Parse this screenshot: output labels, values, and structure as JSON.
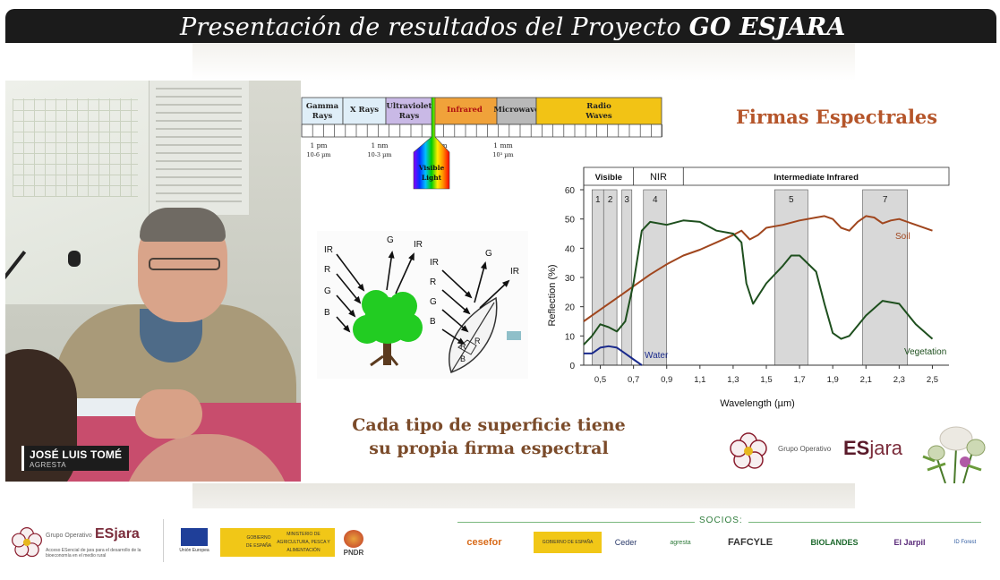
{
  "header": {
    "title_prefix": "Presentación de resultados  del Proyecto ",
    "title_bold": "GO ESJARA"
  },
  "video": {
    "speaker_name": "JOSÉ LUIS TOMÉ",
    "speaker_org": "AGRESTA"
  },
  "slide": {
    "title": "Firmas Espectrales",
    "caption_line1": "Cada tipo de superficie tiene",
    "caption_line2": "su propia firma espectral",
    "spectrum": {
      "bands": [
        {
          "label": "Gamma",
          "label2": "Rays",
          "color": "#dfeef8"
        },
        {
          "label": "X Rays",
          "label2": "",
          "color": "#dfeef8"
        },
        {
          "label": "Ultraviolet",
          "label2": "Rays",
          "color": "#c9b9e6"
        },
        {
          "label": "Infrared",
          "label2": "",
          "color": "#f0a23a"
        },
        {
          "label": "Microwave",
          "label2": "",
          "color": "#b9b9b9"
        },
        {
          "label": "Radio",
          "label2": "Waves",
          "color": "#f2c315"
        }
      ],
      "ticks": [
        {
          "label": "1 pm",
          "label2": "10-6 µm"
        },
        {
          "label": "1 nm",
          "label2": "10-3 µm"
        },
        {
          "label": "1 µm",
          "label2": ""
        },
        {
          "label": "1 mm",
          "label2": "10³ µm"
        }
      ],
      "visible_label": "Visible",
      "visible_label2": "Light"
    },
    "diagram": {
      "tree_labels": [
        "IR",
        "R",
        "G",
        "B",
        "G",
        "IR"
      ],
      "leaf_labels": [
        "IR",
        "R",
        "G",
        "B",
        "G",
        "IR"
      ],
      "leaf_inner": [
        "R",
        "B",
        "R"
      ]
    },
    "logo": {
      "small_text": "Grupo Operativo",
      "es": "ES",
      "jara": "jara"
    }
  },
  "chart_data": {
    "type": "line",
    "title": "",
    "xlabel": "Wavelength (µm)",
    "ylabel": "Reflection (%)",
    "xlim": [
      0.4,
      2.6
    ],
    "ylim": [
      0,
      60
    ],
    "xticks": [
      "0,5",
      "0,7",
      "0,9",
      "1,1",
      "1,3",
      "1,5",
      "1,7",
      "1,9",
      "2,1",
      "2,3",
      "2,5"
    ],
    "xtick_values": [
      0.5,
      0.7,
      0.9,
      1.1,
      1.3,
      1.5,
      1.7,
      1.9,
      2.1,
      2.3,
      2.5
    ],
    "yticks": [
      0,
      10,
      20,
      30,
      40,
      50,
      60
    ],
    "regions": [
      {
        "label": "Visible",
        "from": 0.4,
        "to": 0.7
      },
      {
        "label": "NIR",
        "from": 0.7,
        "to": 1.0
      },
      {
        "label": "Intermediate Infrared",
        "from": 1.0,
        "to": 2.6
      }
    ],
    "bands": [
      {
        "label": "1",
        "from": 0.45,
        "to": 0.52
      },
      {
        "label": "2",
        "from": 0.52,
        "to": 0.6
      },
      {
        "label": "3",
        "from": 0.63,
        "to": 0.69
      },
      {
        "label": "4",
        "from": 0.76,
        "to": 0.9
      },
      {
        "label": "5",
        "from": 1.55,
        "to": 1.75
      },
      {
        "label": "7",
        "from": 2.08,
        "to": 2.35
      }
    ],
    "series": [
      {
        "name": "Soil",
        "color": "#a0461e",
        "x": [
          0.4,
          0.5,
          0.6,
          0.7,
          0.8,
          0.9,
          1.0,
          1.1,
          1.2,
          1.3,
          1.35,
          1.4,
          1.45,
          1.5,
          1.6,
          1.7,
          1.8,
          1.85,
          1.9,
          1.95,
          2.0,
          2.05,
          2.1,
          2.15,
          2.2,
          2.25,
          2.3,
          2.4,
          2.5
        ],
        "y": [
          15,
          19,
          23,
          27,
          31,
          34.5,
          37.5,
          39.5,
          42,
          44.5,
          46,
          43,
          44.5,
          47,
          48,
          49.5,
          50.5,
          51,
          50,
          47,
          46,
          49,
          51,
          50.5,
          48.5,
          49.5,
          50,
          48,
          46
        ]
      },
      {
        "name": "Vegetation",
        "color": "#1e4f1e",
        "x": [
          0.4,
          0.45,
          0.5,
          0.55,
          0.6,
          0.65,
          0.7,
          0.75,
          0.8,
          0.9,
          1.0,
          1.1,
          1.2,
          1.3,
          1.35,
          1.38,
          1.42,
          1.5,
          1.6,
          1.65,
          1.7,
          1.8,
          1.85,
          1.9,
          1.95,
          2.0,
          2.1,
          2.2,
          2.3,
          2.4,
          2.5
        ],
        "y": [
          7,
          10,
          14,
          13,
          11.5,
          15,
          28,
          46,
          49,
          48,
          49.5,
          49,
          46,
          45,
          42,
          28,
          21,
          28,
          34,
          37.5,
          37.5,
          32,
          21,
          11,
          9,
          10,
          17,
          22,
          21,
          14,
          9
        ]
      },
      {
        "name": "Water",
        "color": "#1a2a8c",
        "x": [
          0.4,
          0.45,
          0.5,
          0.55,
          0.6,
          0.65,
          0.7,
          0.75
        ],
        "y": [
          4,
          4,
          6,
          6.5,
          6,
          4,
          2,
          0
        ]
      }
    ]
  },
  "footer": {
    "go_small": "Grupo Operativo",
    "go_big": "ESjara",
    "go_tagline": "Acceso ESencial de jara para el desarrollo de la bioeconomía en el medio rural",
    "eu_label": "Unión Europea",
    "gob_label": "GOBIERNO DE ESPAÑA",
    "ministry_label": "MINISTERIO DE AGRICULTURA, PESCA Y ALIMENTACIÓN",
    "pndr_label": "PNDR",
    "socios_label": "SOCIOS:",
    "partners": [
      "cesefor",
      "GOBIERNO DE ESPAÑA",
      "Ceder",
      "agresta",
      "FAFCYLE",
      "BIOLANDES",
      "El Jarpil",
      "ID Forest"
    ]
  }
}
